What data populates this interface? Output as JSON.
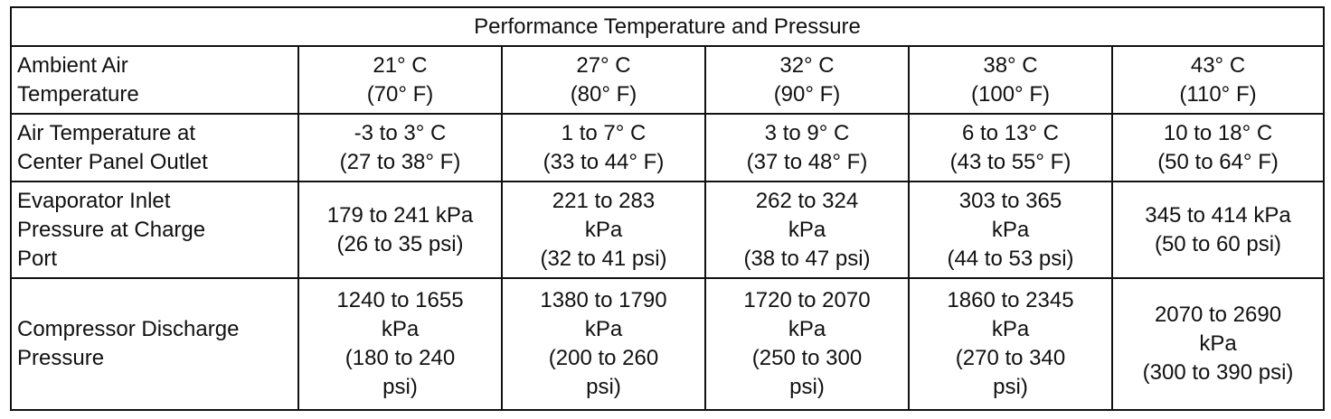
{
  "table": {
    "title": "Performance Temperature and Pressure",
    "rows": [
      {
        "label": [
          "Ambient Air",
          "Temperature"
        ],
        "cells": [
          [
            "21° C",
            "(70° F)"
          ],
          [
            "27° C",
            "(80° F)"
          ],
          [
            "32° C",
            "(90° F)"
          ],
          [
            "38° C",
            "(100° F)"
          ],
          [
            "43° C",
            "(110° F)"
          ]
        ]
      },
      {
        "label": [
          "Air Temperature at",
          "Center Panel Outlet"
        ],
        "cells": [
          [
            "-3 to 3° C",
            "(27 to 38° F)"
          ],
          [
            "1 to 7° C",
            "(33 to 44° F)"
          ],
          [
            "3 to 9° C",
            "(37 to 48° F)"
          ],
          [
            "6 to 13° C",
            "(43 to 55° F)"
          ],
          [
            "10 to 18° C",
            "(50 to 64° F)"
          ]
        ]
      },
      {
        "label": [
          "Evaporator Inlet",
          "Pressure at Charge",
          "Port"
        ],
        "cells": [
          [
            "179 to 241 kPa",
            "(26 to 35 psi)"
          ],
          [
            "221 to 283",
            "kPa",
            "(32 to 41 psi)"
          ],
          [
            "262 to 324",
            "kPa",
            "(38 to 47 psi)"
          ],
          [
            "303 to 365",
            "kPa",
            "(44 to 53 psi)"
          ],
          [
            "345 to 414 kPa",
            "(50 to 60 psi)"
          ]
        ]
      },
      {
        "label": [
          "Compressor Discharge",
          "Pressure"
        ],
        "cells": [
          [
            "1240 to 1655",
            "kPa",
            "(180 to 240",
            "psi)"
          ],
          [
            "1380 to 1790",
            "kPa",
            "(200 to 260",
            "psi)"
          ],
          [
            "1720 to 2070",
            "kPa",
            "(250 to 300",
            "psi)"
          ],
          [
            "1860 to 2345",
            "kPa",
            "(270 to 340",
            "psi)"
          ],
          [
            "2070 to 2690",
            "kPa",
            "(300 to 390 psi)"
          ]
        ]
      }
    ]
  }
}
